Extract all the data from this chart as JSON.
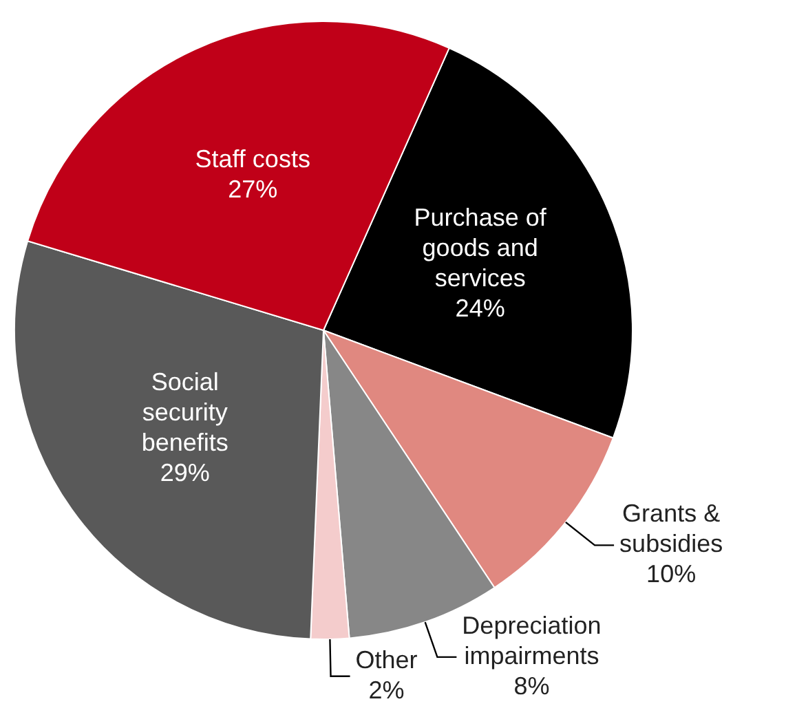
{
  "chart_data": {
    "type": "pie",
    "categories": [
      "Purchase of goods and services",
      "Grants & subsidies",
      "Depreciation impairments",
      "Other",
      "Social security benefits",
      "Staff costs"
    ],
    "values": [
      24,
      10,
      8,
      2,
      29,
      27
    ],
    "value_labels": [
      "24%",
      "10%",
      "8%",
      "2%",
      "29%",
      "27%"
    ],
    "colors": [
      "#000000",
      "#e08880",
      "#878787",
      "#f4cccc",
      "#595959",
      "#c00018"
    ]
  }
}
